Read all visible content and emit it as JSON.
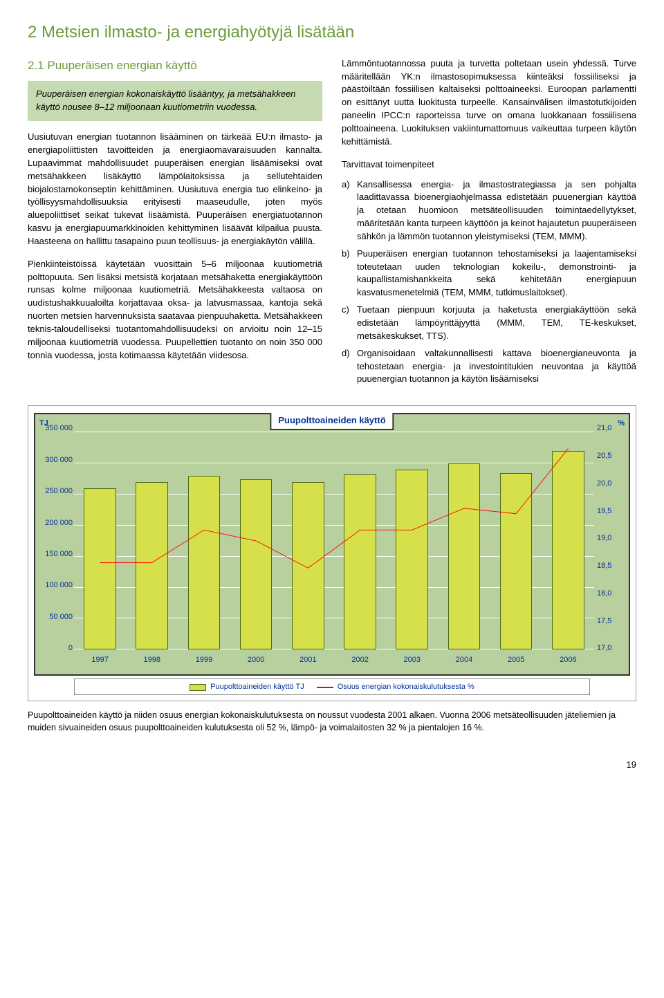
{
  "section": {
    "title": "2  Metsien ilmasto- ja energiahyötyjä lisätään",
    "sub_title": "2.1  Puuperäisen energian käyttö",
    "intro_box": "Puuperäisen energian kokonaiskäyttö lisääntyy, ja metsähakkeen käyttö nousee 8–12 miljoonaan kuutiometriin vuodessa.",
    "left_p1": "Uusiutuvan energian tuotannon lisääminen on tärkeää EU:n ilmasto- ja energiapoliittisten tavoitteiden ja energiaomavaraisuuden kannalta. Lupaavimmat mahdollisuudet puuperäisen energian lisäämiseksi ovat metsähakkeen lisäkäyttö lämpölaitoksissa ja sellutehtaiden biojalostamokonseptin kehittäminen. Uusiutuva energia tuo elinkeino- ja työllisyysmahdollisuuksia erityisesti maaseudulle, joten myös aluepoliittiset seikat tukevat lisäämistä. Puuperäisen energiatuotannon kasvu ja energiapuumarkkinoiden kehittyminen lisäävät kilpailua puusta. Haasteena on hallittu tasapaino puun teollisuus- ja energiakäytön välillä.",
    "left_p2": "Pienkiinteistöissä käytetään vuosittain 5–6 miljoonaa kuutiometriä polttopuuta. Sen lisäksi metsistä korjataan metsähaketta energiakäyttöön runsas kolme miljoonaa kuutiometriä. Metsähakkeesta valtaosa on uudistushakkuualoilta korjattavaa oksa- ja latvusmassaa, kantoja sekä nuorten metsien harvennuksista saatavaa pienpuuhaketta. Metsähakkeen teknis-taloudelliseksi tuotantomahdollisuudeksi on arvioitu noin 12–15 miljoonaa kuutiometriä vuodessa. Puupellettien tuotanto on noin 350 000 tonnia vuodessa, josta kotimaassa käytetään viidesosa.",
    "right_p1": "Lämmöntuotannossa puuta ja turvetta poltetaan usein yhdessä. Turve määritellään YK:n ilmastosopimuksessa kiinteäksi fossiiliseksi ja päästöiltään fossiilisen kaltaiseksi polttoaineeksi. Euroopan parlamentti on esittänyt uutta luokitusta turpeelle. Kansainvälisen ilmastotutkijoiden paneelin IPCC:n raporteissa turve on omana luokkanaan fossiilisena polttoaineena. Luokituksen vakiintumattomuus vaikeuttaa turpeen käytön kehittämistä.",
    "measures_heading": "Tarvittavat toimenpiteet",
    "measures": [
      {
        "letter": "a)",
        "text": "Kansallisessa energia- ja ilmastostrategiassa ja sen pohjalta laadittavassa bioenergiaohjelmassa edistetään puuenergian käyttöä ja otetaan huomioon metsäteollisuuden toimintaedellytykset, määritetään kanta turpeen käyttöön ja keinot hajautetun puuperäiseen sähkön ja lämmön tuotannon yleistymiseksi (TEM, MMM)."
      },
      {
        "letter": "b)",
        "text": "Puuperäisen energian tuotannon tehostamiseksi ja laajentamiseksi toteutetaan uuden teknologian kokeilu-, demonstrointi- ja kaupallistamishankkeita sekä kehitetään energiapuun kasvatusmenetelmiä (TEM, MMM, tutkimuslaitokset)."
      },
      {
        "letter": "c)",
        "text": "Tuetaan pienpuun korjuuta ja haketusta energiakäyttöön sekä edistetään lämpöyrittäjyyttä (MMM, TEM, TE-keskukset, metsäkeskukset, TTS)."
      },
      {
        "letter": "d)",
        "text": "Organisoidaan valtakunnallisesti kattava bioenergianeuvonta ja tehostetaan energia- ja investointitukien neuvontaa ja käyttöä puuenergian tuotannon ja käytön lisäämiseksi"
      }
    ]
  },
  "chart": {
    "title": "Puupolttoaineiden käyttö",
    "type": "bar+line",
    "background_color": "#b8cf9e",
    "grid_color": "#ffffff",
    "bar_fill": "#d5e04a",
    "bar_border": "#4a6a1a",
    "line_color": "#ff0000",
    "y_left": {
      "label": "TJ",
      "min": 0,
      "max": 350000,
      "step": 50000
    },
    "y_right": {
      "label": "%",
      "min": 17.0,
      "max": 21.0,
      "step": 0.5
    },
    "x_categories": [
      "1997",
      "1998",
      "1999",
      "2000",
      "2001",
      "2002",
      "2003",
      "2004",
      "2005",
      "2006"
    ],
    "bar_values": [
      260000,
      270000,
      280000,
      275000,
      270000,
      282000,
      290000,
      300000,
      285000,
      320000
    ],
    "line_values": [
      18.6,
      18.6,
      19.2,
      19.0,
      18.5,
      19.2,
      19.2,
      19.6,
      19.5,
      20.7
    ],
    "legend": {
      "bar": "Puupolttoaineiden käyttö TJ",
      "line": "Osuus energian kokonaiskulutuksesta %"
    }
  },
  "caption": "Puupolttoaineiden käyttö ja niiden osuus energian kokonaiskulutuksesta on noussut vuodesta 2001 alkaen. Vuonna 2006 metsäteollisuuden jäteliemien ja muiden sivuaineiden osuus puupolttoaineiden kulutuksesta oli 52 %, lämpö- ja voimalaitosten 32 % ja pientalojen 16 %.",
  "page_number": "19"
}
